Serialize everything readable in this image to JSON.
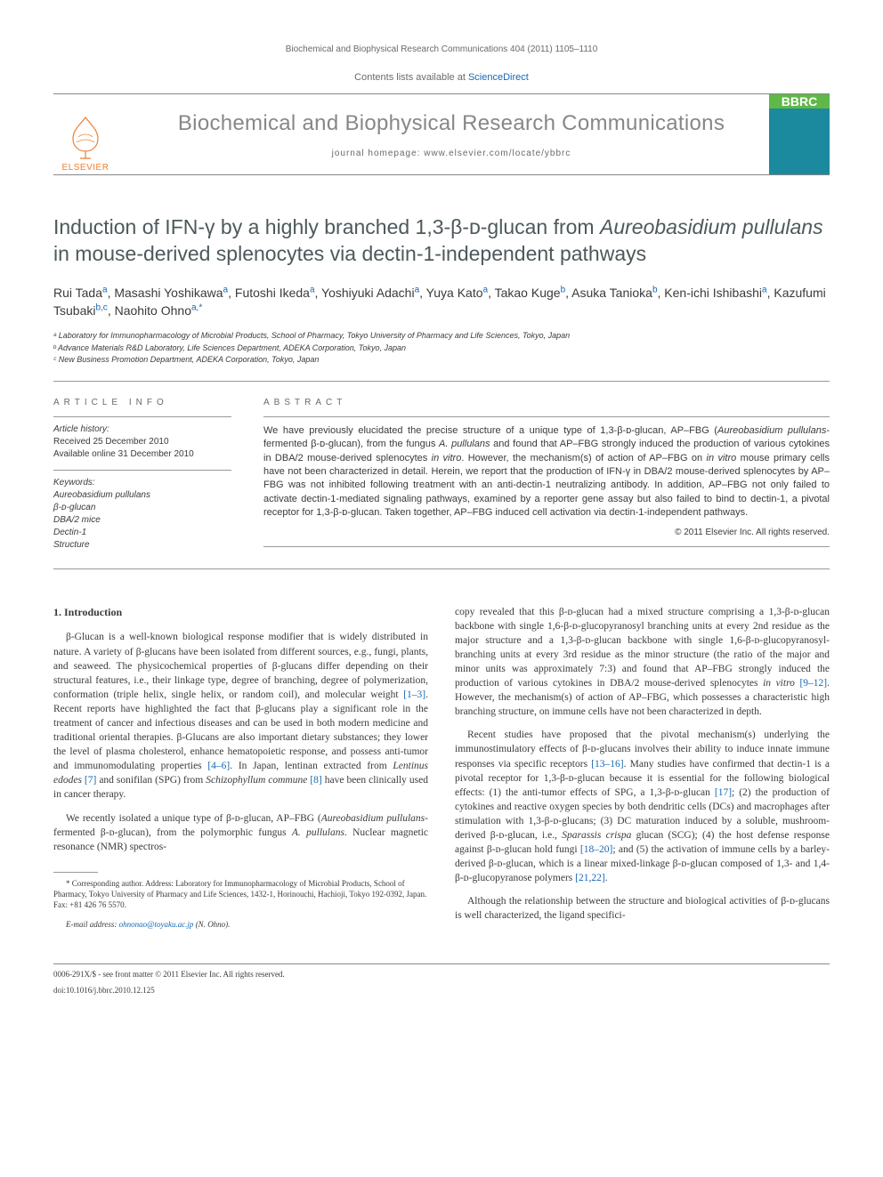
{
  "header_citation": "Biochemical and Biophysical Research Communications 404 (2011) 1105–1110",
  "contents_prefix": "Contents lists available at ",
  "contents_link": "ScienceDirect",
  "journal_title": "Biochemical and Biophysical Research Communications",
  "journal_homepage": "journal homepage: www.elsevier.com/locate/ybbrc",
  "elsevier_label": "ELSEVIER",
  "cover_code": "BBRC",
  "article_title_html": "Induction of IFN-γ by a highly branched 1,3-β-ᴅ-glucan from <em>Aureobasidium pullulans</em> in mouse-derived splenocytes via dectin-1-independent pathways",
  "authors_html": "Rui Tada<sup>a</sup>, Masashi Yoshikawa<sup>a</sup>, Futoshi Ikeda<sup>a</sup>, Yoshiyuki Adachi<sup>a</sup>, Yuya Kato<sup>a</sup>, Takao Kuge<sup>b</sup>, Asuka Tanioka<sup>b</sup>, Ken-ichi Ishibashi<sup>a</sup>, Kazufumi Tsubaki<sup>b,c</sup>, Naohito Ohno<sup>a,*</sup>",
  "affiliations": [
    "ᵃ Laboratory for Immunopharmacology of Microbial Products, School of Pharmacy, Tokyo University of Pharmacy and Life Sciences, Tokyo, Japan",
    "ᵇ Advance Materials R&D Laboratory, Life Sciences Department, ADEKA Corporation, Tokyo, Japan",
    "ᶜ New Business Promotion Department, ADEKA Corporation, Tokyo, Japan"
  ],
  "article_info_heading": "ARTICLE INFO",
  "history_heading": "Article history:",
  "history_lines": "Received 25 December 2010\nAvailable online 31 December 2010",
  "keywords_heading": "Keywords:",
  "keywords": "Aureobasidium pullulans\nβ-ᴅ-glucan\nDBA/2 mice\nDectin-1\nStructure",
  "abstract_heading": "ABSTRACT",
  "abstract_html": "We have previously elucidated the precise structure of a unique type of 1,3-β-ᴅ-glucan, AP–FBG (<em>Aureobasidium pullulans</em>-fermented β-ᴅ-glucan), from the fungus <em>A. pullulans</em> and found that AP–FBG strongly induced the production of various cytokines in DBA/2 mouse-derived splenocytes <em>in vitro</em>. However, the mechanism(s) of action of AP–FBG on <em>in vitro</em> mouse primary cells have not been characterized in detail. Herein, we report that the production of IFN-γ in DBA/2 mouse-derived splenocytes by AP–FBG was not inhibited following treatment with an anti-dectin-1 neutralizing antibody. In addition, AP–FBG not only failed to activate dectin-1-mediated signaling pathways, examined by a reporter gene assay but also failed to bind to dectin-1, a pivotal receptor for 1,3-β-ᴅ-glucan. Taken together, AP–FBG induced cell activation via dectin-1-independent pathways.",
  "abstract_copyright": "© 2011 Elsevier Inc. All rights reserved.",
  "section1_heading": "1. Introduction",
  "col1_paragraphs": [
    "β-Glucan is a well-known biological response modifier that is widely distributed in nature. A variety of β-glucans have been isolated from different sources, e.g., fungi, plants, and seaweed. The physicochemical properties of β-glucans differ depending on their structural features, i.e., their linkage type, degree of branching, degree of polymerization, conformation (triple helix, single helix, or random coil), and molecular weight <span class=\"ref\">[1–3]</span>. Recent reports have highlighted the fact that β-glucans play a significant role in the treatment of cancer and infectious diseases and can be used in both modern medicine and traditional oriental therapies. β-Glucans are also important dietary substances; they lower the level of plasma cholesterol, enhance hematopoietic response, and possess anti-tumor and immunomodulating properties <span class=\"ref\">[4–6]</span>. In Japan, lentinan extracted from <em>Lentinus edodes</em> <span class=\"ref\">[7]</span> and sonifilan (SPG) from <em>Schizophyllum commune</em> <span class=\"ref\">[8]</span> have been clinically used in cancer therapy.",
    "We recently isolated a unique type of β-ᴅ-glucan, AP–FBG (<em>Aureobasidium pullulans</em>-fermented β-ᴅ-glucan), from the polymorphic fungus <em>A. pullulans</em>. Nuclear magnetic resonance (NMR) spectros-"
  ],
  "col2_paragraphs": [
    "copy revealed that this β-ᴅ-glucan had a mixed structure comprising a 1,3-β-ᴅ-glucan backbone with single 1,6-β-ᴅ-glucopyranosyl branching units at every 2nd residue as the major structure and a 1,3-β-ᴅ-glucan backbone with single 1,6-β-ᴅ-glucopyranosyl-branching units at every 3rd residue as the minor structure (the ratio of the major and minor units was approximately 7:3) and found that AP–FBG strongly induced the production of various cytokines in DBA/2 mouse-derived splenocytes <em>in vitro</em> <span class=\"ref\">[9–12]</span>. However, the mechanism(s) of action of AP–FBG, which possesses a characteristic high branching structure, on immune cells have not been characterized in depth.",
    "Recent studies have proposed that the pivotal mechanism(s) underlying the immunostimulatory effects of β-ᴅ-glucans involves their ability to induce innate immune responses via specific receptors <span class=\"ref\">[13–16]</span>. Many studies have confirmed that dectin-1 is a pivotal receptor for 1,3-β-ᴅ-glucan because it is essential for the following biological effects: (1) the anti-tumor effects of SPG, a 1,3-β-ᴅ-glucan <span class=\"ref\">[17]</span>; (2) the production of cytokines and reactive oxygen species by both dendritic cells (DCs) and macrophages after stimulation with 1,3-β-ᴅ-glucans; (3) DC maturation induced by a soluble, mushroom-derived β-ᴅ-glucan, i.e., <em>Sparassis crispa</em> glucan (SCG); (4) the host defense response against β-ᴅ-glucan hold fungi <span class=\"ref\">[18–20]</span>; and (5) the activation of immune cells by a barley-derived β-ᴅ-glucan, which is a linear mixed-linkage β-ᴅ-glucan composed of 1,3- and 1,4-β-ᴅ-glucopyranose polymers <span class=\"ref\">[21,22]</span>.",
    "Although the relationship between the structure and biological activities of β-ᴅ-glucans is well characterized, the ligand specifici-"
  ],
  "corresp_note": "* Corresponding author. Address: Laboratory for Immunopharmacology of Microbial Products, School of Pharmacy, Tokyo University of Pharmacy and Life Sciences, 1432-1, Horinouchi, Hachioji, Tokyo 192-0392, Japan. Fax: +81 426 76 5570.",
  "email_label": "E-mail address:",
  "email": "ohnonao@toyaku.ac.jp",
  "email_person": "(N. Ohno).",
  "issn_line": "0006-291X/$ - see front matter © 2011 Elsevier Inc. All rights reserved.",
  "doi_line": "doi:10.1016/j.bbrc.2010.12.125",
  "colors": {
    "link": "#1668b3",
    "journal_gray": "#878787",
    "text_gray": "#6a6a6a",
    "elsevier_orange": "#ef7e2e",
    "cover_green": "#5fb848",
    "cover_teal": "#1c8a9e"
  }
}
